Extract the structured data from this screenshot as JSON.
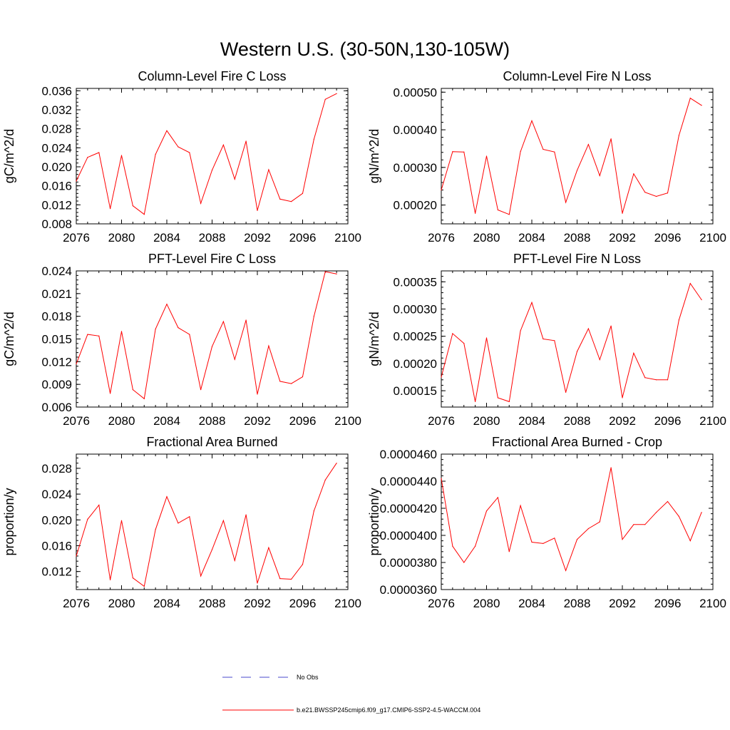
{
  "figure": {
    "title": "Western U.S. (30-50N,130-105W)",
    "series_color": "#ff0000",
    "obs_color": "#4a4acc"
  },
  "legend": {
    "placement": "bottom-center",
    "entries": [
      {
        "label": "No Obs",
        "style": "dashed",
        "color": "#4a4acc"
      },
      {
        "label": "b.e21.BWSSP245cmip6.f09_g17.CMIP6-SSP2-4.5-WACCM.004",
        "style": "solid",
        "color": "#ff0000"
      }
    ]
  },
  "chart_data": [
    {
      "type": "line",
      "title": "Column-Level Fire C Loss",
      "ylabel": "gC/m^2/d",
      "xlim": [
        2076,
        2100
      ],
      "ylim": [
        0.008,
        0.0365
      ],
      "xticks": [
        2076,
        2080,
        2084,
        2088,
        2092,
        2096,
        2100
      ],
      "xtick_labels": [
        "2076",
        "2080",
        "2084",
        "2088",
        "2092",
        "2096",
        "2100"
      ],
      "yticks": [
        0.008,
        0.012,
        0.016,
        0.02,
        0.024,
        0.028,
        0.032,
        0.036
      ],
      "ytick_labels": [
        "0.008",
        "0.012",
        "0.016",
        "0.020",
        "0.024",
        "0.028",
        "0.032",
        "0.036"
      ],
      "x": [
        2076,
        2077,
        2078,
        2079,
        2080,
        2081,
        2082,
        2083,
        2084,
        2085,
        2086,
        2087,
        2088,
        2089,
        2090,
        2091,
        2092,
        2093,
        2094,
        2095,
        2096,
        2097,
        2098,
        2099
      ],
      "values": [
        0.017,
        0.022,
        0.023,
        0.0112,
        0.0224,
        0.0118,
        0.01,
        0.0226,
        0.0276,
        0.0242,
        0.023,
        0.0123,
        0.0193,
        0.0246,
        0.0174,
        0.0254,
        0.0108,
        0.0194,
        0.0132,
        0.0127,
        0.0144,
        0.0258,
        0.0342,
        0.0354
      ]
    },
    {
      "type": "line",
      "title": "Column-Level Fire N Loss",
      "ylabel": "gN/m^2/d",
      "xlim": [
        2076,
        2100
      ],
      "ylim": [
        0.00015,
        0.00051
      ],
      "xticks": [
        2076,
        2080,
        2084,
        2088,
        2092,
        2096,
        2100
      ],
      "xtick_labels": [
        "2076",
        "2080",
        "2084",
        "2088",
        "2092",
        "2096",
        "2100"
      ],
      "yticks": [
        0.0002,
        0.0003,
        0.0004,
        0.0005
      ],
      "ytick_labels": [
        "0.00020",
        "0.00030",
        "0.00040",
        "0.00050"
      ],
      "x": [
        2076,
        2077,
        2078,
        2079,
        2080,
        2081,
        2082,
        2083,
        2084,
        2085,
        2086,
        2087,
        2088,
        2089,
        2090,
        2091,
        2092,
        2093,
        2094,
        2095,
        2096,
        2097,
        2098,
        2099
      ],
      "values": [
        0.00024,
        0.000342,
        0.000341,
        0.000178,
        0.00033,
        0.000187,
        0.000175,
        0.000342,
        0.000424,
        0.000348,
        0.000341,
        0.000207,
        0.000292,
        0.000361,
        0.000278,
        0.000376,
        0.000178,
        0.000283,
        0.000234,
        0.000223,
        0.000232,
        0.000385,
        0.000484,
        0.000465
      ]
    },
    {
      "type": "line",
      "title": "PFT-Level Fire C Loss",
      "ylabel": "gC/m^2/d",
      "xlim": [
        2076,
        2100
      ],
      "ylim": [
        0.006,
        0.024
      ],
      "xticks": [
        2076,
        2080,
        2084,
        2088,
        2092,
        2096,
        2100
      ],
      "xtick_labels": [
        "2076",
        "2080",
        "2084",
        "2088",
        "2092",
        "2096",
        "2100"
      ],
      "yticks": [
        0.006,
        0.009,
        0.012,
        0.015,
        0.018,
        0.021,
        0.024
      ],
      "ytick_labels": [
        "0.006",
        "0.009",
        "0.012",
        "0.015",
        "0.018",
        "0.021",
        "0.024"
      ],
      "x": [
        2076,
        2077,
        2078,
        2079,
        2080,
        2081,
        2082,
        2083,
        2084,
        2085,
        2086,
        2087,
        2088,
        2089,
        2090,
        2091,
        2092,
        2093,
        2094,
        2095,
        2096,
        2097,
        2098,
        2099
      ],
      "values": [
        0.0117,
        0.0156,
        0.0154,
        0.0078,
        0.016,
        0.0083,
        0.0071,
        0.0163,
        0.0196,
        0.0165,
        0.0156,
        0.0083,
        0.014,
        0.0173,
        0.0123,
        0.0175,
        0.0077,
        0.0141,
        0.0094,
        0.0091,
        0.01,
        0.018,
        0.0239,
        0.0236
      ]
    },
    {
      "type": "line",
      "title": "PFT-Level Fire N Loss",
      "ylabel": "gN/m^2/d",
      "xlim": [
        2076,
        2100
      ],
      "ylim": [
        0.00012,
        0.00037
      ],
      "xticks": [
        2076,
        2080,
        2084,
        2088,
        2092,
        2096,
        2100
      ],
      "xtick_labels": [
        "2076",
        "2080",
        "2084",
        "2088",
        "2092",
        "2096",
        "2100"
      ],
      "yticks": [
        0.00015,
        0.0002,
        0.00025,
        0.0003,
        0.00035
      ],
      "ytick_labels": [
        "0.00015",
        "0.00020",
        "0.00025",
        "0.00030",
        "0.00035"
      ],
      "x": [
        2076,
        2077,
        2078,
        2079,
        2080,
        2081,
        2082,
        2083,
        2084,
        2085,
        2086,
        2087,
        2088,
        2089,
        2090,
        2091,
        2092,
        2093,
        2094,
        2095,
        2096,
        2097,
        2098,
        2099
      ],
      "values": [
        0.000175,
        0.000255,
        0.000237,
        0.00013,
        0.000247,
        0.000137,
        0.00013,
        0.00026,
        0.000312,
        0.000245,
        0.000242,
        0.000147,
        0.000222,
        0.000264,
        0.000207,
        0.000269,
        0.000137,
        0.000219,
        0.000174,
        0.00017,
        0.00017,
        0.00028,
        0.000347,
        0.000317
      ]
    },
    {
      "type": "line",
      "title": "Fractional Area Burned",
      "ylabel": "proportion/y",
      "xlim": [
        2076,
        2100
      ],
      "ylim": [
        0.0092,
        0.0302
      ],
      "xticks": [
        2076,
        2080,
        2084,
        2088,
        2092,
        2096,
        2100
      ],
      "xtick_labels": [
        "2076",
        "2080",
        "2084",
        "2088",
        "2092",
        "2096",
        "2100"
      ],
      "yticks": [
        0.012,
        0.016,
        0.02,
        0.024,
        0.028
      ],
      "ytick_labels": [
        "0.012",
        "0.016",
        "0.020",
        "0.024",
        "0.028"
      ],
      "x": [
        2076,
        2077,
        2078,
        2079,
        2080,
        2081,
        2082,
        2083,
        2084,
        2085,
        2086,
        2087,
        2088,
        2089,
        2090,
        2091,
        2092,
        2093,
        2094,
        2095,
        2096,
        2097,
        2098,
        2099
      ],
      "values": [
        0.0144,
        0.0201,
        0.0223,
        0.0107,
        0.0199,
        0.011,
        0.0097,
        0.0185,
        0.0236,
        0.0195,
        0.0205,
        0.0113,
        0.0154,
        0.0199,
        0.0137,
        0.0208,
        0.0102,
        0.0157,
        0.0109,
        0.0108,
        0.0131,
        0.0214,
        0.0262,
        0.0288
      ]
    },
    {
      "type": "line",
      "title": "Fractional Area Burned - Crop",
      "ylabel": "proportion/y",
      "xlim": [
        2076,
        2100
      ],
      "ylim": [
        3.6e-05,
        4.6e-05
      ],
      "xticks": [
        2076,
        2080,
        2084,
        2088,
        2092,
        2096,
        2100
      ],
      "xtick_labels": [
        "2076",
        "2080",
        "2084",
        "2088",
        "2092",
        "2096",
        "2100"
      ],
      "yticks": [
        3.6e-05,
        3.8e-05,
        4e-05,
        4.2e-05,
        4.4e-05,
        4.6e-05
      ],
      "ytick_labels": [
        "0.0000360",
        "0.0000380",
        "0.0000400",
        "0.0000420",
        "0.0000440",
        "0.0000460"
      ],
      "x": [
        2076,
        2077,
        2078,
        2079,
        2080,
        2081,
        2082,
        2083,
        2084,
        2085,
        2086,
        2087,
        2088,
        2089,
        2090,
        2091,
        2092,
        2093,
        2094,
        2095,
        2096,
        2097,
        2098,
        2099
      ],
      "values": [
        4.42e-05,
        3.92e-05,
        3.8e-05,
        3.92e-05,
        4.18e-05,
        4.28e-05,
        3.88e-05,
        4.22e-05,
        3.95e-05,
        3.94e-05,
        3.98e-05,
        3.74e-05,
        3.97e-05,
        4.05e-05,
        4.1e-05,
        4.5e-05,
        3.97e-05,
        4.08e-05,
        4.08e-05,
        4.17e-05,
        4.25e-05,
        4.14e-05,
        3.96e-05,
        4.17e-05
      ]
    }
  ]
}
